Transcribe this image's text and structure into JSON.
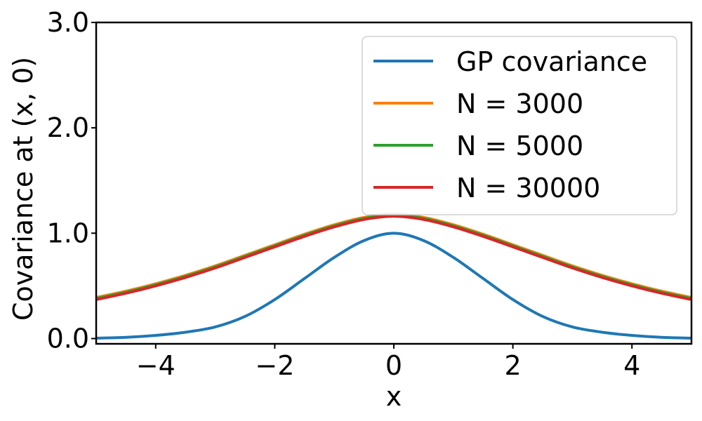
{
  "chart_data": {
    "type": "line",
    "title": "",
    "xlabel": "x",
    "ylabel": "Covariance at (x, 0)",
    "xlim": [
      -5,
      5
    ],
    "ylim": [
      -0.05,
      3.0
    ],
    "xticks": [
      -4,
      -2,
      0,
      2,
      4
    ],
    "xtick_labels": [
      "−4",
      "−2",
      "0",
      "2",
      "4"
    ],
    "yticks": [
      0.0,
      1.0,
      2.0,
      3.0
    ],
    "ytick_labels": [
      "0.0",
      "1.0",
      "2.0",
      "3.0"
    ],
    "grid": false,
    "legend_position": "top-right",
    "x": [
      -5,
      -4.5,
      -4,
      -3.5,
      -3,
      -2.5,
      -2,
      -1.5,
      -1,
      -0.5,
      0,
      0.5,
      1,
      1.5,
      2,
      2.5,
      3,
      3.5,
      4,
      4.5,
      5
    ],
    "series": [
      {
        "name": "GP covariance",
        "color": "#1f77b4",
        "values": [
          0.004,
          0.012,
          0.03,
          0.06,
          0.11,
          0.21,
          0.37,
          0.57,
          0.77,
          0.93,
          1.0,
          0.93,
          0.77,
          0.57,
          0.37,
          0.21,
          0.11,
          0.06,
          0.03,
          0.012,
          0.004
        ]
      },
      {
        "name": "N = 3000",
        "color": "#ff7f0e",
        "values": [
          0.39,
          0.45,
          0.52,
          0.6,
          0.69,
          0.79,
          0.89,
          0.99,
          1.08,
          1.15,
          1.18,
          1.15,
          1.08,
          0.99,
          0.89,
          0.79,
          0.69,
          0.6,
          0.52,
          0.45,
          0.39
        ]
      },
      {
        "name": "N = 5000",
        "color": "#2ca02c",
        "values": [
          0.38,
          0.44,
          0.51,
          0.59,
          0.68,
          0.78,
          0.88,
          0.98,
          1.07,
          1.14,
          1.17,
          1.14,
          1.07,
          0.98,
          0.88,
          0.78,
          0.68,
          0.59,
          0.51,
          0.44,
          0.38
        ]
      },
      {
        "name": "N = 30000",
        "color": "#d62728",
        "values": [
          0.37,
          0.43,
          0.5,
          0.58,
          0.67,
          0.77,
          0.87,
          0.97,
          1.06,
          1.13,
          1.16,
          1.13,
          1.06,
          0.97,
          0.87,
          0.77,
          0.67,
          0.58,
          0.5,
          0.43,
          0.37
        ]
      }
    ]
  }
}
